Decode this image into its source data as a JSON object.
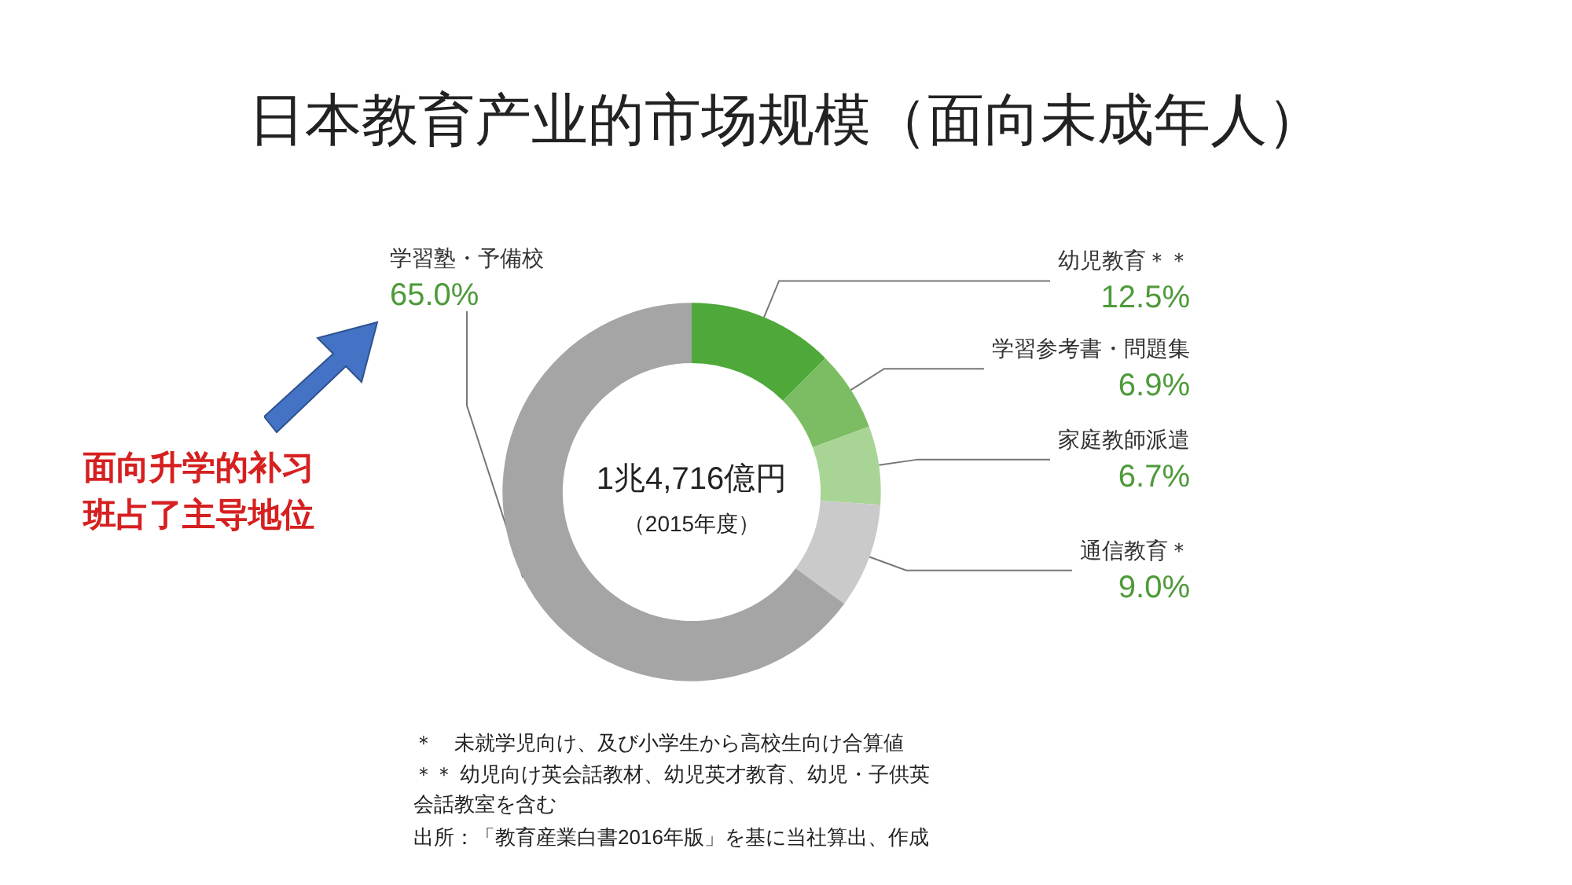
{
  "chart_data": {
    "type": "donut",
    "title": "日本教育产业的市场规模（面向未成年人）",
    "categories": [
      "幼児教育＊＊",
      "学習参考書・問題集",
      "家庭教師派遣",
      "通信教育＊",
      "学習塾・予備校"
    ],
    "values": [
      12.5,
      6.9,
      6.7,
      9.0,
      65.0
    ],
    "colors": [
      "#4ea93a",
      "#7cbd63",
      "#a8d595",
      "#cacaca",
      "#a5a5a5"
    ],
    "value_labels": [
      "12.5%",
      "6.9%",
      "6.7%",
      "9.0%",
      "65.0%"
    ],
    "legend": false,
    "annotations": [
      "1兆4,716億円",
      "（2015年度）",
      "面向升学的补习班占了主导地位",
      "＊　未就学児向け、及び小学生から高校生向け合算値",
      "＊＊ 幼児向け英会話教材、幼児英才教育、幼児・子供英会話教室を含む",
      "出所：「教育産業白書2016年版」を基に当社算出、作成"
    ]
  }
}
